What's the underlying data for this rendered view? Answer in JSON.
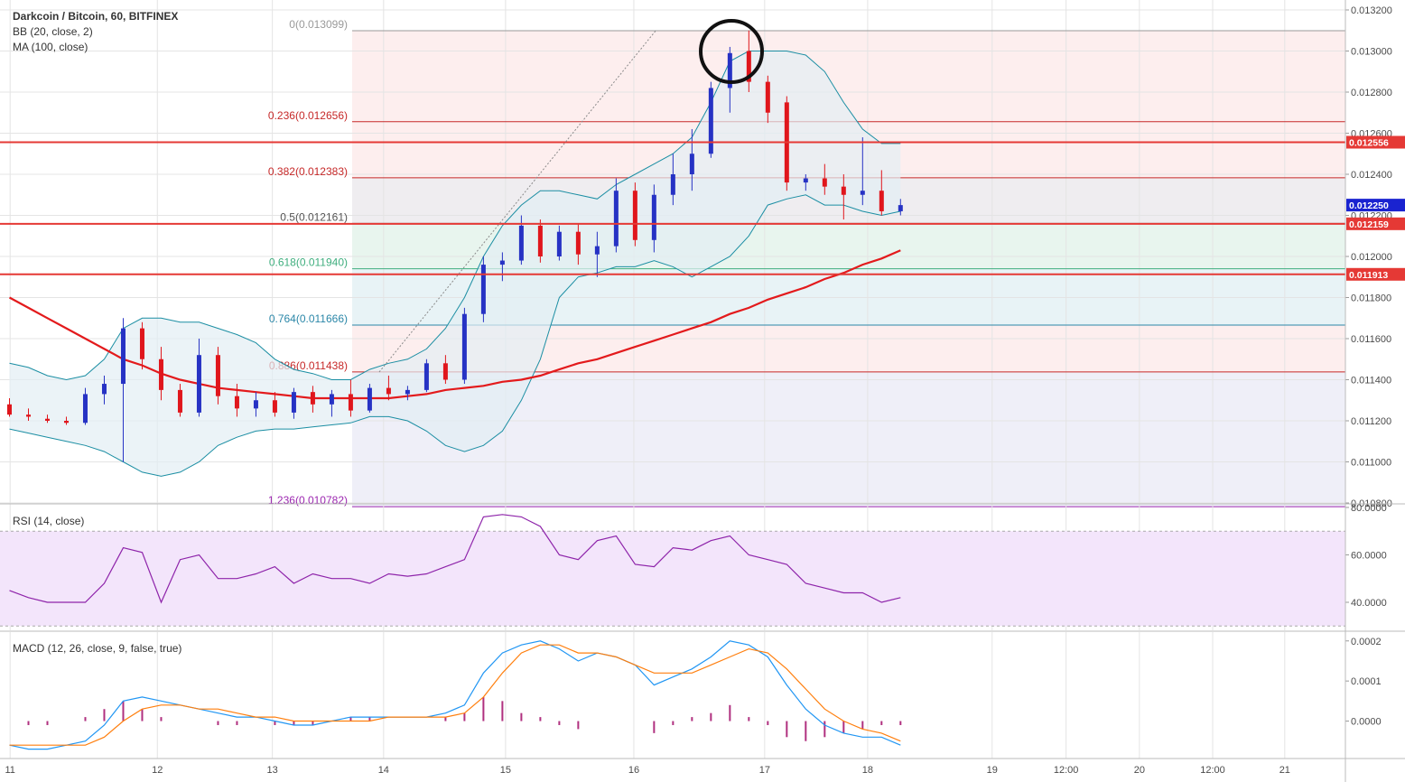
{
  "chart_data": [
    {
      "type": "candlestick",
      "title": "Darkcoin / Bitcoin, 60, BITFINEX",
      "up_color": "#2632c4",
      "down_color": "#e0161c",
      "x": [
        1.5,
        4.5,
        7.5,
        10.5,
        13.5,
        16.5,
        19.5,
        22.5,
        25.5,
        28.5,
        31.5,
        34.5,
        37.5,
        40.5,
        43.5,
        46.5,
        49.5,
        52.5,
        55.5,
        58.5,
        61.5,
        64.5,
        67.5,
        70.5,
        73.5,
        76.5,
        79.5,
        82.5,
        85.5,
        88.5,
        91.5,
        94.5,
        97.5,
        100.5,
        103.5,
        106.5,
        109.5,
        112.5,
        115.5,
        118.5,
        121.5,
        124.5,
        127.5,
        130.5,
        133.5,
        136.5,
        139.5,
        142.5
      ],
      "candles": [
        [
          0.01128,
          0.01131,
          0.01122,
          0.01123
        ],
        [
          0.01123,
          0.01126,
          0.0112,
          0.01122
        ],
        [
          0.01121,
          0.01123,
          0.01119,
          0.0112
        ],
        [
          0.0112,
          0.01122,
          0.01118,
          0.01119
        ],
        [
          0.01119,
          0.01136,
          0.01118,
          0.01133
        ],
        [
          0.01133,
          0.01142,
          0.01128,
          0.01138
        ],
        [
          0.01138,
          0.0117,
          0.011,
          0.01165
        ],
        [
          0.01165,
          0.01168,
          0.01145,
          0.0115
        ],
        [
          0.0115,
          0.01156,
          0.0113,
          0.01135
        ],
        [
          0.01135,
          0.01138,
          0.01122,
          0.01124
        ],
        [
          0.01124,
          0.0116,
          0.01122,
          0.01152
        ],
        [
          0.01152,
          0.01156,
          0.01128,
          0.01132
        ],
        [
          0.01132,
          0.01138,
          0.01122,
          0.01126
        ],
        [
          0.01126,
          0.01134,
          0.01122,
          0.0113
        ],
        [
          0.0113,
          0.01134,
          0.01122,
          0.01124
        ],
        [
          0.01124,
          0.01136,
          0.01121,
          0.01134
        ],
        [
          0.01134,
          0.01137,
          0.01124,
          0.01128
        ],
        [
          0.01128,
          0.01135,
          0.01122,
          0.01133
        ],
        [
          0.01133,
          0.0114,
          0.01122,
          0.01125
        ],
        [
          0.01125,
          0.01138,
          0.01124,
          0.01136
        ],
        [
          0.01136,
          0.01142,
          0.0113,
          0.01133
        ],
        [
          0.01133,
          0.01137,
          0.0113,
          0.01135
        ],
        [
          0.01135,
          0.0115,
          0.01134,
          0.01148
        ],
        [
          0.01148,
          0.01152,
          0.01138,
          0.0114
        ],
        [
          0.0114,
          0.01175,
          0.01138,
          0.01172
        ],
        [
          0.01172,
          0.012,
          0.01168,
          0.01196
        ],
        [
          0.01196,
          0.01202,
          0.01188,
          0.01198
        ],
        [
          0.01198,
          0.0122,
          0.01196,
          0.01215
        ],
        [
          0.01215,
          0.01218,
          0.01197,
          0.012
        ],
        [
          0.012,
          0.01215,
          0.01198,
          0.01212
        ],
        [
          0.01212,
          0.01216,
          0.01196,
          0.01201
        ],
        [
          0.01201,
          0.01212,
          0.0119,
          0.01205
        ],
        [
          0.01205,
          0.01238,
          0.01202,
          0.01232
        ],
        [
          0.01232,
          0.01236,
          0.01205,
          0.01208
        ],
        [
          0.01208,
          0.01235,
          0.01202,
          0.0123
        ],
        [
          0.0123,
          0.0125,
          0.01225,
          0.0124
        ],
        [
          0.0124,
          0.01262,
          0.01232,
          0.0125
        ],
        [
          0.0125,
          0.01285,
          0.01248,
          0.01282
        ],
        [
          0.01282,
          0.01302,
          0.0127,
          0.01299
        ],
        [
          0.013,
          0.0131,
          0.0128,
          0.01285
        ],
        [
          0.01285,
          0.01288,
          0.01265,
          0.0127
        ],
        [
          0.01275,
          0.01278,
          0.01232,
          0.01236
        ],
        [
          0.01236,
          0.0124,
          0.01232,
          0.01238
        ],
        [
          0.01238,
          0.01245,
          0.0123,
          0.01234
        ],
        [
          0.01234,
          0.0124,
          0.01218,
          0.0123
        ],
        [
          0.0123,
          0.01258,
          0.01225,
          0.01232
        ],
        [
          0.01232,
          0.01242,
          0.0122,
          0.01222
        ],
        [
          0.01222,
          0.01228,
          0.0122,
          0.01225
        ]
      ],
      "series": [
        {
          "name": "BB (20, close, 2)",
          "color": "#1b8ea3",
          "fill": "#e3eef3",
          "upper": [
            0.01148,
            0.01146,
            0.01142,
            0.0114,
            0.01142,
            0.0115,
            0.01165,
            0.0117,
            0.0117,
            0.01168,
            0.01168,
            0.01165,
            0.01162,
            0.01158,
            0.0115,
            0.01145,
            0.01143,
            0.0114,
            0.0114,
            0.01145,
            0.01148,
            0.0115,
            0.01155,
            0.01165,
            0.0118,
            0.012,
            0.01215,
            0.01225,
            0.01232,
            0.01232,
            0.0123,
            0.01228,
            0.01235,
            0.0124,
            0.01245,
            0.0125,
            0.01258,
            0.01275,
            0.01295,
            0.013,
            0.013,
            0.013,
            0.01298,
            0.0129,
            0.01275,
            0.01262,
            0.01255,
            0.01255
          ],
          "lower": [
            0.01116,
            0.01114,
            0.01112,
            0.0111,
            0.01108,
            0.01105,
            0.011,
            0.01095,
            0.01093,
            0.01095,
            0.011,
            0.01108,
            0.01112,
            0.01115,
            0.01116,
            0.01116,
            0.01117,
            0.01118,
            0.01119,
            0.01122,
            0.01122,
            0.0112,
            0.01115,
            0.01108,
            0.01105,
            0.01108,
            0.01115,
            0.0113,
            0.0115,
            0.0118,
            0.0119,
            0.01192,
            0.01195,
            0.01195,
            0.01198,
            0.01195,
            0.0119,
            0.01195,
            0.012,
            0.0121,
            0.01225,
            0.01228,
            0.0123,
            0.01225,
            0.01225,
            0.01222,
            0.0122,
            0.01222
          ]
        },
        {
          "name": "MA (100, close)",
          "color": "#e31a1c",
          "values": [
            0.0118,
            0.01175,
            0.0117,
            0.01165,
            0.0116,
            0.01155,
            0.0115,
            0.01147,
            0.01143,
            0.0114,
            0.01138,
            0.01136,
            0.01135,
            0.01134,
            0.01133,
            0.01132,
            0.01131,
            0.01131,
            0.01131,
            0.01131,
            0.01131,
            0.01132,
            0.01133,
            0.01135,
            0.01136,
            0.01137,
            0.01139,
            0.0114,
            0.01142,
            0.01145,
            0.01148,
            0.0115,
            0.01153,
            0.01156,
            0.01159,
            0.01162,
            0.01165,
            0.01168,
            0.01172,
            0.01175,
            0.01179,
            0.01182,
            0.01185,
            0.01189,
            0.01192,
            0.01196,
            0.01199,
            0.01203
          ]
        }
      ],
      "xlim": [
        0,
        212.9
      ],
      "xticks": [
        {
          "value": 1.6,
          "label": "11"
        },
        {
          "value": 24.9,
          "label": "12"
        },
        {
          "value": 43.1,
          "label": "13"
        },
        {
          "value": 60.7,
          "label": "14"
        },
        {
          "value": 80,
          "label": "15"
        },
        {
          "value": 100.3,
          "label": "16"
        },
        {
          "value": 121,
          "label": "17"
        },
        {
          "value": 137.3,
          "label": "18"
        },
        {
          "value": 157,
          "label": "19"
        },
        {
          "value": 168.7,
          "label": "12:00"
        },
        {
          "value": 180.3,
          "label": "20"
        },
        {
          "value": 191.9,
          "label": "12:00"
        },
        {
          "value": 203.3,
          "label": "21"
        }
      ],
      "ylim": [
        0.0108,
        0.0132
      ],
      "yticks": [
        {
          "value": 0.0108,
          "label": "0.010800"
        },
        {
          "value": 0.011,
          "label": "0.011000"
        },
        {
          "value": 0.0112,
          "label": "0.011200"
        },
        {
          "value": 0.0114,
          "label": "0.011400"
        },
        {
          "value": 0.0116,
          "label": "0.011600"
        },
        {
          "value": 0.0118,
          "label": "0.011800"
        },
        {
          "value": 0.012,
          "label": "0.012000"
        },
        {
          "value": 0.0122,
          "label": "0.012200"
        },
        {
          "value": 0.0124,
          "label": "0.012400"
        },
        {
          "value": 0.0126,
          "label": "0.012600"
        },
        {
          "value": 0.0128,
          "label": "0.012800"
        },
        {
          "value": 0.013,
          "label": "0.013000"
        },
        {
          "value": 0.0132,
          "label": "0.013200"
        }
      ],
      "grid": true,
      "fib": {
        "levels": [
          {
            "value": 0.013099,
            "label": "0(0.013099)",
            "color": "#9a9a9a"
          },
          {
            "value": 0.012656,
            "label": "0.236(0.012656)",
            "color": "#c62828"
          },
          {
            "value": 0.012383,
            "label": "0.382(0.012383)",
            "color": "#c62828"
          },
          {
            "value": 0.012161,
            "label": "0.5(0.012161)",
            "color": "#555555"
          },
          {
            "value": 0.01194,
            "label": "0.618(0.011940)",
            "color": "#3fae7e"
          },
          {
            "value": 0.011666,
            "label": "0.764(0.011666)",
            "color": "#2b87a8"
          },
          {
            "value": 0.011438,
            "label": "0.886(0.011438)",
            "color": "#c62828"
          },
          {
            "value": 0.010782,
            "label": "1.236(0.010782)",
            "color": "#9c27b0"
          }
        ],
        "fills": [
          "#fdeeee",
          "#fdeeee",
          "#efedf0",
          "#e8f5ee",
          "#e8f3f6",
          "#fdeeee",
          "#efeff8"
        ]
      },
      "hlines": [
        0.012556,
        0.012159,
        0.011913
      ],
      "hline_color": "#e53935",
      "last_price": {
        "value": 0.01225,
        "label": "0.012250"
      },
      "last_price_color": "#1a23d0"
    },
    {
      "type": "line",
      "title": "RSI (14, close)",
      "color": "#8e24aa",
      "values": [
        45,
        42,
        40,
        40,
        40,
        48,
        63,
        61,
        40,
        58,
        60,
        50,
        50,
        52,
        55,
        48,
        52,
        50,
        50,
        48,
        52,
        51,
        52,
        55,
        58,
        76,
        77,
        76,
        72,
        60,
        58,
        66,
        68,
        56,
        55,
        63,
        62,
        66,
        68,
        60,
        58,
        56,
        48,
        46,
        44,
        44,
        40,
        42
      ],
      "ylim": [
        28.2,
        81.5
      ],
      "yticks": [
        {
          "value": 80,
          "label": "80.0000"
        },
        {
          "value": 60,
          "label": "60.0000"
        },
        {
          "value": 40,
          "label": "40.0000"
        }
      ],
      "band": [
        30,
        70
      ],
      "band_color": "#f3e5fb"
    },
    {
      "type": "macd",
      "title": "MACD (12, 26, close, 9, false, true)",
      "macd_line": {
        "color": "#2196f3",
        "values": [
          -6e-05,
          -7e-05,
          -7e-05,
          -6e-05,
          -5e-05,
          -1e-05,
          5e-05,
          6e-05,
          5e-05,
          4e-05,
          3e-05,
          2e-05,
          1e-05,
          1e-05,
          0,
          -1e-05,
          -1e-05,
          0,
          1e-05,
          1e-05,
          1e-05,
          1e-05,
          1e-05,
          2e-05,
          4e-05,
          0.00012,
          0.00017,
          0.00019,
          0.0002,
          0.00018,
          0.00015,
          0.00017,
          0.00016,
          0.00014,
          9e-05,
          0.00011,
          0.00013,
          0.00016,
          0.0002,
          0.00019,
          0.00016,
          9e-05,
          3e-05,
          -1e-05,
          -3e-05,
          -4e-05,
          -4e-05,
          -6e-05
        ]
      },
      "signal_line": {
        "color": "#ff7f0e",
        "values": [
          -6e-05,
          -6e-05,
          -6e-05,
          -6e-05,
          -6e-05,
          -4e-05,
          0,
          3e-05,
          4e-05,
          4e-05,
          3e-05,
          3e-05,
          2e-05,
          1e-05,
          1e-05,
          0,
          0,
          0,
          0,
          0,
          1e-05,
          1e-05,
          1e-05,
          1e-05,
          2e-05,
          6e-05,
          0.00012,
          0.00017,
          0.00019,
          0.00019,
          0.00017,
          0.00017,
          0.00016,
          0.00014,
          0.00012,
          0.00012,
          0.00012,
          0.00014,
          0.00016,
          0.00018,
          0.00017,
          0.00013,
          8e-05,
          3e-05,
          0,
          -2e-05,
          -3e-05,
          -5e-05
        ]
      },
      "histogram": {
        "color": "#b0307f",
        "values": [
          0,
          -1e-05,
          -1e-05,
          0,
          1e-05,
          3e-05,
          5e-05,
          3e-05,
          1e-05,
          0,
          0,
          -1e-05,
          -1e-05,
          0,
          -1e-05,
          -1e-05,
          -1e-05,
          0,
          1e-05,
          1e-05,
          0,
          0,
          0,
          1e-05,
          2e-05,
          6e-05,
          5e-05,
          2e-05,
          1e-05,
          -1e-05,
          -2e-05,
          0,
          0,
          0,
          -3e-05,
          -1e-05,
          1e-05,
          2e-05,
          4e-05,
          1e-05,
          -1e-05,
          -4e-05,
          -5e-05,
          -4e-05,
          -3e-05,
          -2e-05,
          -1e-05,
          -1e-05
        ]
      },
      "ylim": [
        -8.89e-05,
        0.000222
      ],
      "yticks": [
        0.0002,
        0.0001,
        {
          "value": 0,
          "label": "0.0000"
        }
      ]
    }
  ]
}
